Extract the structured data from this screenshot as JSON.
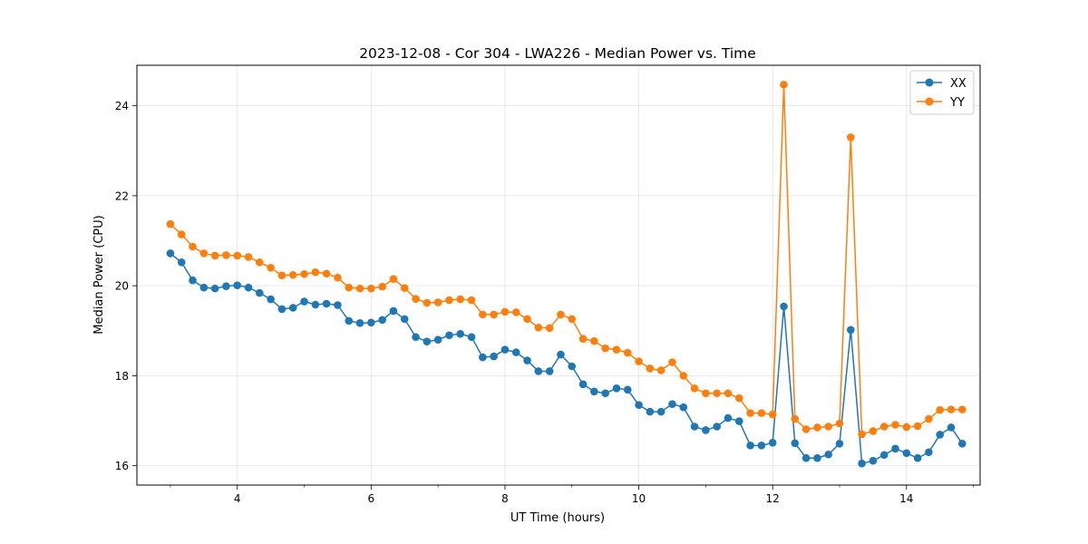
{
  "chart_data": {
    "type": "line",
    "title": "2023-12-08 - Cor 304 - LWA226 - Median Power vs. Time",
    "xlabel": "UT Time (hours)",
    "ylabel": "Median Power (CPU)",
    "xlim": [
      2.5,
      15.1
    ],
    "ylim": [
      15.57,
      24.9
    ],
    "grid": true,
    "legend_position": "top-right",
    "x_major_ticks": [
      4,
      6,
      8,
      10,
      12,
      14
    ],
    "x_tick_labels": [
      "4",
      "6",
      "8",
      "10",
      "12",
      "14"
    ],
    "y_major_ticks": [
      16,
      18,
      20,
      22,
      24
    ],
    "y_tick_labels": [
      "16",
      "18",
      "20",
      "22",
      "24"
    ],
    "x": [
      3.0,
      3.167,
      3.333,
      3.5,
      3.667,
      3.833,
      4.0,
      4.167,
      4.333,
      4.5,
      4.667,
      4.833,
      5.0,
      5.167,
      5.333,
      5.5,
      5.667,
      5.833,
      6.0,
      6.167,
      6.333,
      6.5,
      6.667,
      6.833,
      7.0,
      7.167,
      7.333,
      7.5,
      7.667,
      7.833,
      8.0,
      8.167,
      8.333,
      8.5,
      8.667,
      8.833,
      9.0,
      9.167,
      9.333,
      9.5,
      9.667,
      9.833,
      10.0,
      10.167,
      10.333,
      10.5,
      10.667,
      10.833,
      11.0,
      11.167,
      11.333,
      11.5,
      11.667,
      11.833,
      12.0,
      12.167,
      12.333,
      12.5,
      12.667,
      12.833,
      13.0,
      13.167,
      13.333,
      13.5,
      13.667,
      13.833,
      14.0,
      14.167,
      14.333,
      14.5,
      14.667,
      14.833
    ],
    "series": [
      {
        "name": "XX",
        "color": "#1f77b4",
        "values": [
          20.72,
          20.52,
          20.12,
          19.96,
          19.94,
          19.99,
          20.01,
          19.96,
          19.84,
          19.7,
          19.48,
          19.51,
          19.65,
          19.58,
          19.6,
          19.57,
          19.22,
          19.17,
          19.18,
          19.24,
          19.44,
          19.26,
          18.86,
          18.76,
          18.8,
          18.9,
          18.93,
          18.86,
          18.41,
          18.43,
          18.58,
          18.52,
          18.34,
          18.1,
          18.1,
          18.47,
          18.21,
          17.81,
          17.65,
          17.61,
          17.72,
          17.69,
          17.35,
          17.2,
          17.2,
          17.37,
          17.3,
          16.87,
          16.79,
          16.87,
          17.06,
          16.99,
          16.45,
          16.45,
          16.51,
          19.54,
          16.5,
          16.17,
          16.17,
          16.25,
          16.49,
          19.02,
          16.05,
          16.11,
          16.24,
          16.38,
          16.28,
          16.17,
          16.3,
          16.69,
          16.85,
          16.49
        ]
      },
      {
        "name": "YY",
        "color": "#ff7f0e",
        "values": [
          21.37,
          21.14,
          20.87,
          20.72,
          20.67,
          20.68,
          20.67,
          20.64,
          20.52,
          20.4,
          20.23,
          20.24,
          20.26,
          20.3,
          20.27,
          20.18,
          19.96,
          19.94,
          19.94,
          19.98,
          20.15,
          19.95,
          19.71,
          19.62,
          19.63,
          19.68,
          19.7,
          19.68,
          19.36,
          19.36,
          19.42,
          19.41,
          19.26,
          19.07,
          19.06,
          19.36,
          19.26,
          18.82,
          18.77,
          18.61,
          18.58,
          18.51,
          18.32,
          18.16,
          18.12,
          18.3,
          18.0,
          17.72,
          17.61,
          17.61,
          17.61,
          17.5,
          17.17,
          17.17,
          17.14,
          24.47,
          17.04,
          16.81,
          16.85,
          16.87,
          16.94,
          23.3,
          16.7,
          16.77,
          16.87,
          16.91,
          16.86,
          16.88,
          17.04,
          17.24,
          17.25,
          17.25
        ]
      }
    ]
  }
}
